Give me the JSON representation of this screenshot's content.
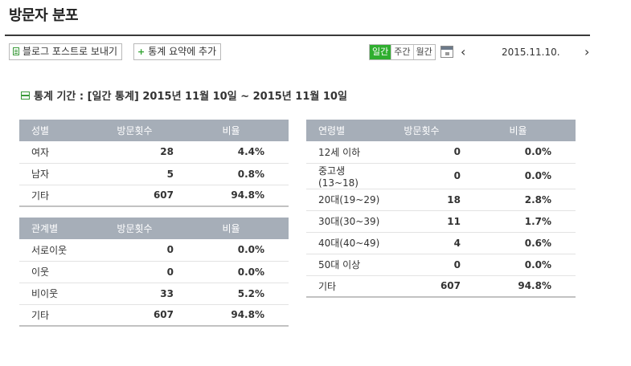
{
  "page": {
    "title": "방문자 분포"
  },
  "toolbar": {
    "blog_post_button": "블로그 포스트로 보내기",
    "stats_summary_button": "통계 요약에 추가",
    "period_tabs": [
      "일간",
      "주간",
      "월간"
    ],
    "active_tab": "일간",
    "date": "2015.11.10."
  },
  "stat_period": "통계 기간 : [일간 통계] 2015년 11월 10일 ~ 2015년 11월 10일",
  "gender_table": {
    "headers": [
      "성별",
      "방문횟수",
      "비율"
    ],
    "rows": [
      {
        "label": "여자",
        "visits": "28",
        "ratio": "4.4%"
      },
      {
        "label": "남자",
        "visits": "5",
        "ratio": "0.8%"
      },
      {
        "label": "기타",
        "visits": "607",
        "ratio": "94.8%"
      }
    ]
  },
  "relation_table": {
    "headers": [
      "관계별",
      "방문횟수",
      "비율"
    ],
    "rows": [
      {
        "label": "서로이웃",
        "visits": "0",
        "ratio": "0.0%"
      },
      {
        "label": "이웃",
        "visits": "0",
        "ratio": "0.0%"
      },
      {
        "label": "비이웃",
        "visits": "33",
        "ratio": "5.2%"
      },
      {
        "label": "기타",
        "visits": "607",
        "ratio": "94.8%"
      }
    ]
  },
  "age_table": {
    "headers": [
      "연령별",
      "방문횟수",
      "비율"
    ],
    "rows": [
      {
        "label": "12세 이하",
        "visits": "0",
        "ratio": "0.0%"
      },
      {
        "label": "중고생(13~18)",
        "visits": "0",
        "ratio": "0.0%"
      },
      {
        "label": "20대(19~29)",
        "visits": "18",
        "ratio": "2.8%"
      },
      {
        "label": "30대(30~39)",
        "visits": "11",
        "ratio": "1.7%"
      },
      {
        "label": "40대(40~49)",
        "visits": "4",
        "ratio": "0.6%"
      },
      {
        "label": "50대 이상",
        "visits": "0",
        "ratio": "0.0%"
      },
      {
        "label": "기타",
        "visits": "607",
        "ratio": "94.8%"
      }
    ]
  },
  "colors": {
    "accent": "#2fae2f",
    "table_header": "#a6aeb8",
    "title_rule": "#3a3a3a"
  }
}
